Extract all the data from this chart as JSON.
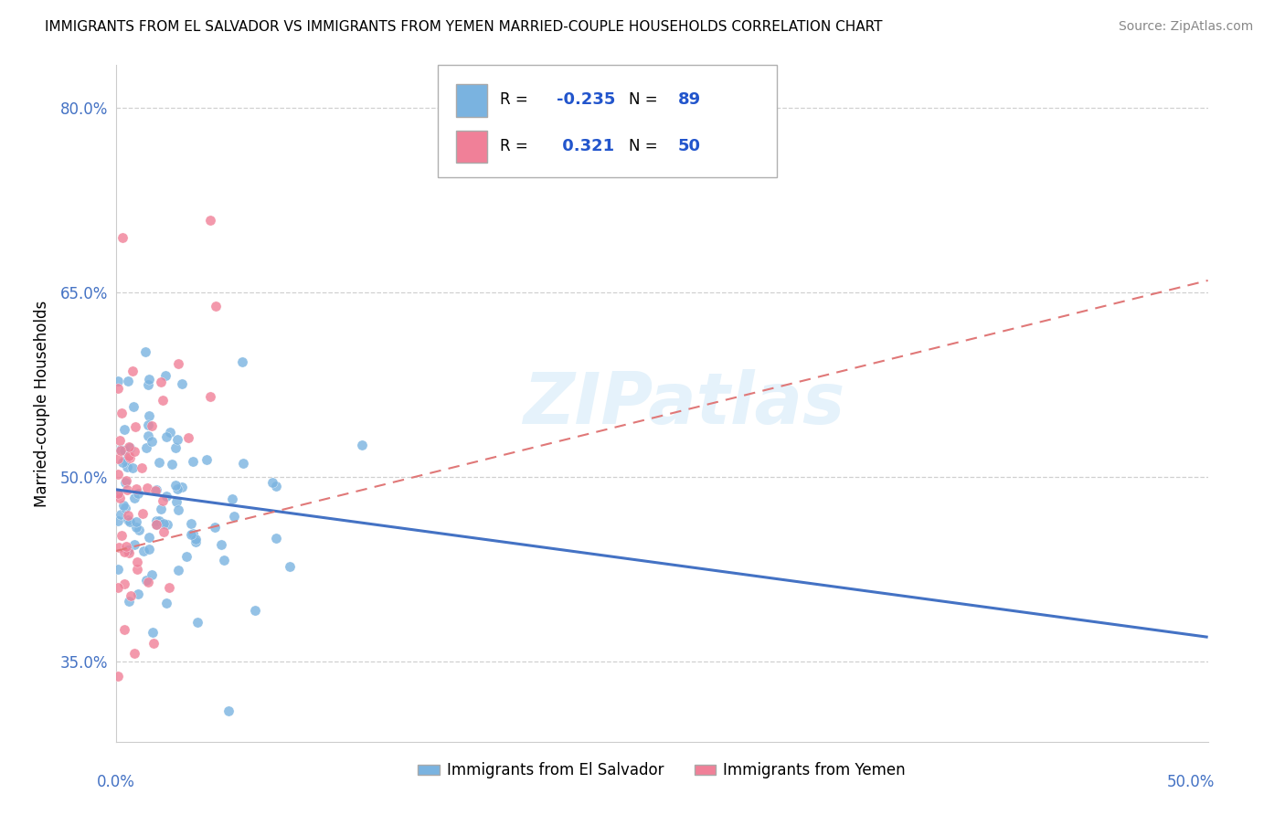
{
  "title": "IMMIGRANTS FROM EL SALVADOR VS IMMIGRANTS FROM YEMEN MARRIED-COUPLE HOUSEHOLDS CORRELATION CHART",
  "source": "Source: ZipAtlas.com",
  "ylabel_ticks": [
    "35.0%",
    "50.0%",
    "65.0%",
    "80.0%"
  ],
  "ytick_vals": [
    0.35,
    0.5,
    0.65,
    0.8
  ],
  "ylabel_label": "Married-couple Households",
  "legend_entries": [
    {
      "label": "Immigrants from El Salvador",
      "color": "#a8c8f0",
      "R": -0.235,
      "N": 89
    },
    {
      "label": "Immigrants from Yemen",
      "color": "#f4a0b0",
      "R": 0.321,
      "N": 50
    }
  ],
  "watermark": "ZIPatlas",
  "el_salvador_color": "#7ab3e0",
  "yemen_color": "#f08098",
  "trendline_el_salvador_color": "#4472c4",
  "trendline_yemen_color": "#e07878",
  "bg_color": "#ffffff",
  "grid_color": "#d0d0d0",
  "xmin": 0.0,
  "xmax": 0.5,
  "ymin": 0.285,
  "ymax": 0.835,
  "trendline_es_x0": 0.0,
  "trendline_es_y0": 0.49,
  "trendline_es_x1": 0.5,
  "trendline_es_y1": 0.37,
  "trendline_ye_x0": 0.0,
  "trendline_ye_y0": 0.44,
  "trendline_ye_x1": 0.5,
  "trendline_ye_y1": 0.66
}
